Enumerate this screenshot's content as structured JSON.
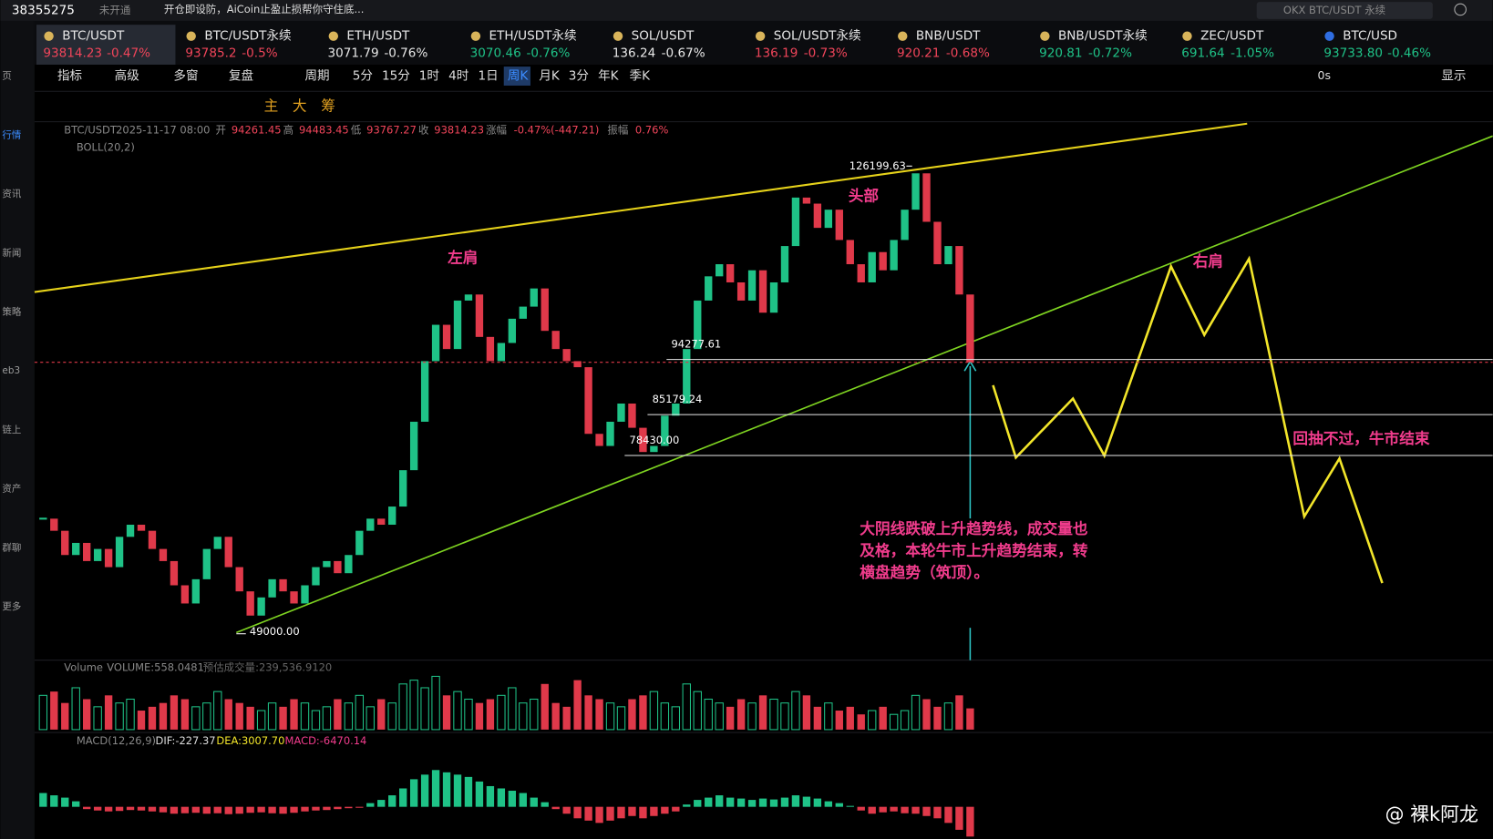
{
  "topbar": {
    "account": "38355275",
    "status": "未开通",
    "notice": "开仓即设防，AiCoin止盈止损帮你守住底...",
    "search": "OKX BTC/USDT 永续"
  },
  "sidebar": [
    "页",
    "行情",
    "资讯",
    "新闻",
    "策略",
    "eb3",
    "链上",
    "资产",
    "群聊",
    "更多"
  ],
  "tabs": [
    {
      "name": "BTC/USDT",
      "price": "93814.23",
      "change": "-0.47%",
      "color": "#f0455a"
    },
    {
      "name": "BTC/USDT永续",
      "price": "93785.2",
      "change": "-0.5%",
      "color": "#f0455a"
    },
    {
      "name": "ETH/USDT",
      "price": "3071.79",
      "change": "-0.76%",
      "color": "#e8e8e8"
    },
    {
      "name": "ETH/USDT永续",
      "price": "3070.46",
      "change": "-0.76%",
      "color": "#1fc287"
    },
    {
      "name": "SOL/USDT",
      "price": "136.24",
      "change": "-0.67%",
      "color": "#e8e8e8"
    },
    {
      "name": "SOL/USDT永续",
      "price": "136.19",
      "change": "-0.73%",
      "color": "#f0455a"
    },
    {
      "name": "BNB/USDT",
      "price": "920.21",
      "change": "-0.68%",
      "color": "#f0455a"
    },
    {
      "name": "BNB/USDT永续",
      "price": "920.81",
      "change": "-0.72%",
      "color": "#1fc287"
    },
    {
      "name": "ZEC/USDT",
      "price": "691.64",
      "change": "-1.05%",
      "color": "#1fc287"
    },
    {
      "name": "BTC/USD",
      "price": "93733.80",
      "change": "-0.46%",
      "color": "#1fc287"
    }
  ],
  "toolbar": {
    "left": [
      "指标",
      "高级",
      "多窗",
      "复盘"
    ],
    "period_label": "周期",
    "periods": [
      "5分",
      "15分",
      "1时",
      "4时",
      "1日",
      "周K",
      "月K",
      "3分",
      "年K",
      "季K"
    ],
    "active_period": 5,
    "right": [
      "0s",
      "显示"
    ],
    "tools": [
      "主",
      "大",
      "筹"
    ]
  },
  "info": {
    "symbol": "BTC/USDT",
    "time": "2025-11-17 08:00",
    "open_label": "开",
    "open": "94261.45",
    "high_label": "高",
    "high": "94483.45",
    "low_label": "低",
    "low": "93767.27",
    "close_label": "收",
    "close": "93814.23",
    "change_label": "涨幅",
    "change": "-0.47%(-447.21)",
    "amp_label": "振幅",
    "amp": "0.76%",
    "indicator": "BOLL(20,2)"
  },
  "chart": {
    "type": "candlestick",
    "ylim": [
      44800,
      133200
    ],
    "up_color": "#1fc287",
    "down_color": "#e0394a",
    "closes": [
      68000,
      66000,
      62000,
      64000,
      61000,
      63000,
      60000,
      65000,
      67000,
      66000,
      63000,
      61000,
      57000,
      54000,
      58000,
      63000,
      65000,
      60000,
      56000,
      52000,
      55000,
      58000,
      56000,
      54000,
      57000,
      60000,
      61000,
      59000,
      62000,
      66000,
      68000,
      67000,
      70000,
      76000,
      84000,
      94000,
      100000,
      96000,
      104000,
      105000,
      98000,
      94000,
      97000,
      101000,
      103000,
      106000,
      99000,
      96000,
      94000,
      93000,
      82000,
      80000,
      84000,
      87000,
      83000,
      79000,
      80000,
      85000,
      87000,
      96000,
      104000,
      108000,
      110000,
      107000,
      104000,
      109000,
      102000,
      107000,
      113000,
      121000,
      120000,
      116000,
      119000,
      114000,
      110000,
      107000,
      112000,
      109000,
      114000,
      119000,
      125000,
      117000,
      110000,
      113000,
      105000,
      93814.23
    ],
    "levels": [
      126199.63,
      94277.61,
      85179.24,
      {
        "value": 78430,
        "label": "78430.00"
      },
      {
        "value": 49000,
        "label": "49000.00"
      }
    ],
    "annotations": [
      "左肩",
      "头部",
      "右肩",
      "回抽不过，牛市结束",
      "大阴线跌破上升趋势线，成交量也",
      "及格，本轮牛市上升趋势结束，转",
      "横盘趋势（筑顶）。"
    ]
  },
  "volume": {
    "label": "Volume",
    "value_text": "VOLUME:558.0481",
    "estimate": "预估成交量:239,536.9120",
    "ylim": [
      0,
      1500
    ],
    "values": [
      900,
      1000,
      700,
      1100,
      800,
      600,
      900,
      700,
      800,
      500,
      600,
      700,
      900,
      800,
      600,
      700,
      1000,
      800,
      700,
      600,
      500,
      700,
      600,
      800,
      700,
      500,
      600,
      800,
      700,
      900,
      600,
      800,
      700,
      1200,
      1300,
      1100,
      1400,
      900,
      1000,
      800,
      700,
      800,
      900,
      1100,
      700,
      800,
      1200,
      700,
      600,
      1300,
      900,
      800,
      700,
      600,
      800,
      900,
      1000,
      700,
      600,
      1200,
      1000,
      800,
      700,
      600,
      800,
      700,
      900,
      800,
      700,
      1000,
      900,
      600,
      700,
      500,
      600,
      400,
      500,
      600,
      400,
      500,
      900,
      800,
      600,
      700,
      900,
      558.0481
    ]
  },
  "macd": {
    "label": "MACD(12,26,9)",
    "dif": "DIF:-227.37",
    "dea": "DEA:3007.70",
    "macd": "MACD:-6470.14",
    "ylim": [
      -7000,
      11000
    ],
    "values": [
      3000,
      2500,
      2000,
      1200,
      -500,
      -800,
      -1000,
      -900,
      -700,
      -800,
      -1000,
      -1200,
      -1500,
      -1400,
      -1300,
      -1500,
      -1400,
      -1600,
      -1500,
      -1300,
      -1200,
      -1400,
      -1500,
      -1300,
      -1000,
      -800,
      -700,
      -500,
      -300,
      -200,
      800,
      1500,
      2500,
      4000,
      6000,
      7000,
      8000,
      7500,
      7000,
      6500,
      5500,
      4500,
      4000,
      3500,
      3000,
      2000,
      1000,
      -500,
      -1500,
      -2500,
      -3000,
      -3500,
      -3000,
      -2500,
      -2000,
      -2500,
      -2000,
      -1500,
      -1000,
      500,
      1500,
      2000,
      2500,
      2000,
      1800,
      1500,
      1800,
      1600,
      2000,
      2500,
      2200,
      1800,
      1200,
      800,
      200,
      -800,
      -1500,
      -1200,
      -1000,
      -1400,
      -1500,
      -2000,
      -2500,
      -3500,
      -5000,
      -6470
    ]
  },
  "watermark": "@ 裸k阿龙"
}
